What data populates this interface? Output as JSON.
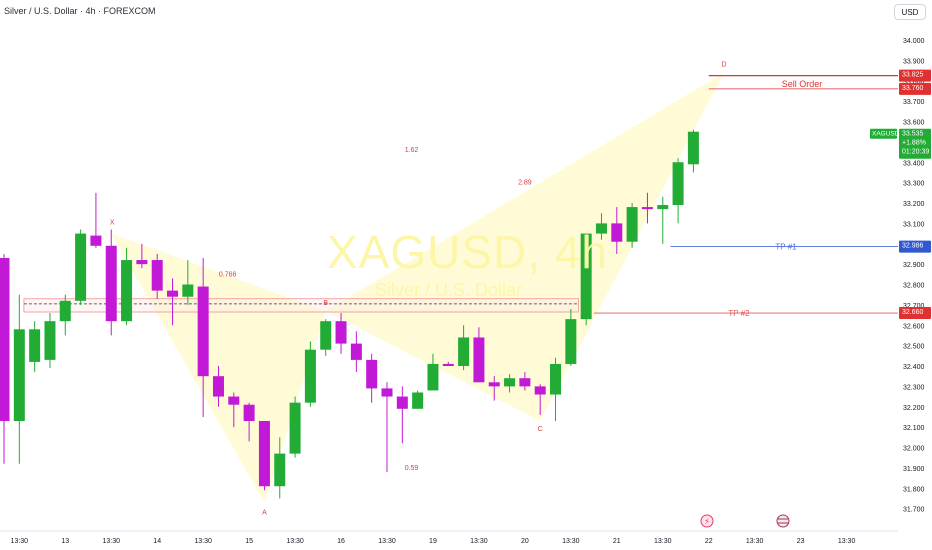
{
  "header": {
    "title": "Silver / U.S. Dollar · 4h · FOREXCOM",
    "currency_button": "USD"
  },
  "watermark": {
    "symbol": "XAGUSD, 4h",
    "name": "Silver / U.S. Dollar"
  },
  "colors": {
    "up": "#22ab35",
    "down": "#c219d6",
    "pattern_fill": "#fffbd6",
    "sell_line": "#e03030",
    "tp1_line": "#4a6ee0",
    "tp2_line": "#e05a5a",
    "level_box": "#f09090"
  },
  "price_labels": {
    "symbol": "XAGUSD",
    "last": "33.535",
    "change": "+1.88%",
    "countdown": "01:20:39",
    "sell_1": "33.825",
    "sell_2": "33.760",
    "tp1": "32.986",
    "tp2": "32.660"
  },
  "annotations": {
    "sell_order": "Sell Order",
    "tp1": "TP #1",
    "tp2": "TP #2",
    "point_x": "X",
    "point_a": "A",
    "point_b": "B",
    "point_c": "C",
    "point_d": "D",
    "ratio_xb": "0.766",
    "ratio_ac": "0.59",
    "ratio_xd": "1.62",
    "ratio_bd": "2.89"
  },
  "chart_data": {
    "type": "candlestick",
    "symbol": "XAGUSD",
    "interval": "4h",
    "ylim": [
      31.62,
      34.1
    ],
    "y_ticks": [
      34.0,
      33.9,
      33.8,
      33.7,
      33.6,
      33.5,
      33.4,
      33.3,
      33.2,
      33.1,
      33.0,
      32.9,
      32.8,
      32.7,
      32.6,
      32.5,
      32.4,
      32.3,
      32.2,
      32.1,
      32.0,
      31.9,
      31.8,
      31.7
    ],
    "y_tick_labels": [
      "34.000",
      "33.900",
      "33.800",
      "33.700",
      "33.600",
      "33.500",
      "33.400",
      "33.300",
      "33.200",
      "33.100",
      "33.000",
      "32.900",
      "32.800",
      "32.700",
      "32.600",
      "32.500",
      "32.400",
      "32.300",
      "32.200",
      "32.100",
      "32.000",
      "31.900",
      "31.800",
      "31.700"
    ],
    "x_labels": [
      {
        "label": "13:30",
        "bar": 1
      },
      {
        "label": "13",
        "bar": 4
      },
      {
        "label": "13:30",
        "bar": 7
      },
      {
        "label": "14",
        "bar": 10
      },
      {
        "label": "13:30",
        "bar": 13
      },
      {
        "label": "15",
        "bar": 16
      },
      {
        "label": "13:30",
        "bar": 19
      },
      {
        "label": "16",
        "bar": 22
      },
      {
        "label": "13:30",
        "bar": 25
      },
      {
        "label": "19",
        "bar": 28
      },
      {
        "label": "13:30",
        "bar": 31
      },
      {
        "label": "20",
        "bar": 34
      },
      {
        "label": "13:30",
        "bar": 37
      },
      {
        "label": "21",
        "bar": 40
      },
      {
        "label": "13:30",
        "bar": 43
      },
      {
        "label": "22",
        "bar": 46
      },
      {
        "label": "13:30",
        "bar": 49
      },
      {
        "label": "23",
        "bar": 52
      },
      {
        "label": "13:30",
        "bar": 55
      }
    ],
    "candles": [
      {
        "o": 32.93,
        "h": 32.95,
        "l": 31.92,
        "c": 32.13
      },
      {
        "o": 32.13,
        "h": 32.75,
        "l": 31.92,
        "c": 32.58
      },
      {
        "o": 32.42,
        "h": 32.62,
        "l": 32.37,
        "c": 32.58
      },
      {
        "o": 32.43,
        "h": 32.66,
        "l": 32.39,
        "c": 32.62
      },
      {
        "o": 32.62,
        "h": 32.75,
        "l": 32.55,
        "c": 32.72
      },
      {
        "o": 32.72,
        "h": 33.07,
        "l": 32.7,
        "c": 33.05
      },
      {
        "o": 33.04,
        "h": 33.25,
        "l": 32.98,
        "c": 32.99
      },
      {
        "o": 32.99,
        "h": 33.07,
        "l": 32.55,
        "c": 32.62
      },
      {
        "o": 32.62,
        "h": 32.98,
        "l": 32.6,
        "c": 32.92
      },
      {
        "o": 32.92,
        "h": 33.0,
        "l": 32.88,
        "c": 32.9
      },
      {
        "o": 32.92,
        "h": 32.95,
        "l": 32.73,
        "c": 32.77
      },
      {
        "o": 32.77,
        "h": 32.83,
        "l": 32.6,
        "c": 32.74
      },
      {
        "o": 32.74,
        "h": 32.92,
        "l": 32.7,
        "c": 32.8
      },
      {
        "o": 32.79,
        "h": 32.93,
        "l": 32.15,
        "c": 32.35
      },
      {
        "o": 32.35,
        "h": 32.4,
        "l": 32.2,
        "c": 32.25
      },
      {
        "o": 32.25,
        "h": 32.27,
        "l": 32.1,
        "c": 32.21
      },
      {
        "o": 32.21,
        "h": 32.22,
        "l": 32.03,
        "c": 32.13
      },
      {
        "o": 32.13,
        "h": 32.13,
        "l": 31.79,
        "c": 31.81
      },
      {
        "o": 31.81,
        "h": 32.05,
        "l": 31.75,
        "c": 31.97
      },
      {
        "o": 31.97,
        "h": 32.25,
        "l": 31.95,
        "c": 32.22
      },
      {
        "o": 32.22,
        "h": 32.52,
        "l": 32.2,
        "c": 32.48
      },
      {
        "o": 32.48,
        "h": 32.63,
        "l": 32.45,
        "c": 32.62
      },
      {
        "o": 32.62,
        "h": 32.66,
        "l": 32.46,
        "c": 32.51
      },
      {
        "o": 32.51,
        "h": 32.57,
        "l": 32.37,
        "c": 32.43
      },
      {
        "o": 32.43,
        "h": 32.46,
        "l": 32.22,
        "c": 32.29
      },
      {
        "o": 32.29,
        "h": 32.32,
        "l": 31.88,
        "c": 32.25
      },
      {
        "o": 32.25,
        "h": 32.3,
        "l": 32.02,
        "c": 32.19
      },
      {
        "o": 32.19,
        "h": 32.28,
        "l": 32.19,
        "c": 32.27
      },
      {
        "o": 32.28,
        "h": 32.46,
        "l": 32.28,
        "c": 32.41
      },
      {
        "o": 32.41,
        "h": 32.42,
        "l": 32.4,
        "c": 32.4
      },
      {
        "o": 32.4,
        "h": 32.6,
        "l": 32.38,
        "c": 32.54
      },
      {
        "o": 32.54,
        "h": 32.59,
        "l": 32.33,
        "c": 32.32
      },
      {
        "o": 32.32,
        "h": 32.35,
        "l": 32.23,
        "c": 32.3
      },
      {
        "o": 32.3,
        "h": 32.36,
        "l": 32.27,
        "c": 32.34
      },
      {
        "o": 32.34,
        "h": 32.37,
        "l": 32.28,
        "c": 32.3
      },
      {
        "o": 32.3,
        "h": 32.31,
        "l": 32.16,
        "c": 32.26
      },
      {
        "o": 32.26,
        "h": 32.44,
        "l": 32.13,
        "c": 32.41
      },
      {
        "o": 32.41,
        "h": 32.68,
        "l": 32.4,
        "c": 32.63
      },
      {
        "o": 32.63,
        "h": 33.05,
        "l": 32.6,
        "c": 33.05
      },
      {
        "o": 33.05,
        "h": 33.15,
        "l": 33.02,
        "c": 33.1
      },
      {
        "o": 33.1,
        "h": 33.18,
        "l": 32.95,
        "c": 33.01
      },
      {
        "o": 33.01,
        "h": 33.2,
        "l": 32.98,
        "c": 33.18
      },
      {
        "o": 33.18,
        "h": 33.25,
        "l": 33.1,
        "c": 33.17
      },
      {
        "o": 33.17,
        "h": 33.23,
        "l": 33.0,
        "c": 33.19
      },
      {
        "o": 33.19,
        "h": 33.42,
        "l": 33.1,
        "c": 33.4
      },
      {
        "o": 33.39,
        "h": 33.56,
        "l": 33.35,
        "c": 33.55
      }
    ],
    "pattern": {
      "points": [
        {
          "label": "X",
          "bar": 7,
          "price": 33.05
        },
        {
          "label": "A",
          "bar": 17,
          "price": 31.73
        },
        {
          "label": "B",
          "bar": 21,
          "price": 32.67
        },
        {
          "label": "C",
          "bar": 35,
          "price": 32.13
        },
        {
          "label": "D",
          "bar": 47,
          "price": 33.84
        }
      ],
      "ratios": [
        {
          "label": "0.766",
          "bar": 14.6,
          "price": 32.84
        },
        {
          "label": "0.59",
          "bar": 26.6,
          "price": 31.89
        },
        {
          "label": "1.62",
          "bar": 26.6,
          "price": 33.45
        },
        {
          "label": "2.89",
          "bar": 34.0,
          "price": 33.29
        }
      ]
    },
    "levels": {
      "sell_1": 33.825,
      "sell_2": 33.76,
      "tp1": 32.986,
      "tp2": 32.66,
      "box_top": 32.73,
      "box_mid": 32.705,
      "box_bottom": 32.665
    }
  }
}
